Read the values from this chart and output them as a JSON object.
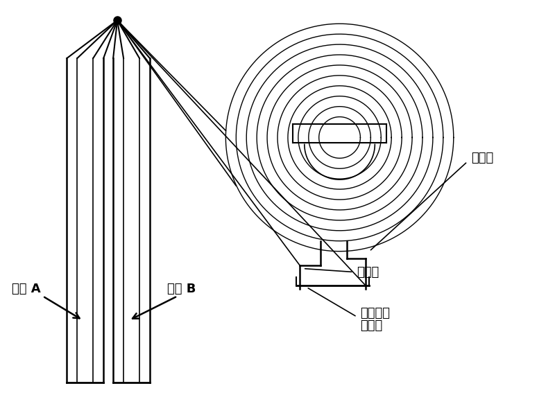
{
  "bg_color": "#ffffff",
  "line_color": "#000000",
  "fig_width": 8.0,
  "fig_height": 5.83,
  "dpi": 100,
  "label_dianche_a": "电芯 A",
  "label_dianche_b": "电芯 B",
  "label_zhengji_er": "正极耳",
  "label_fuji_er": "负极耳",
  "label_yinxian": "引线连接",
  "label_jinshu": "金属片",
  "font_size": 12
}
